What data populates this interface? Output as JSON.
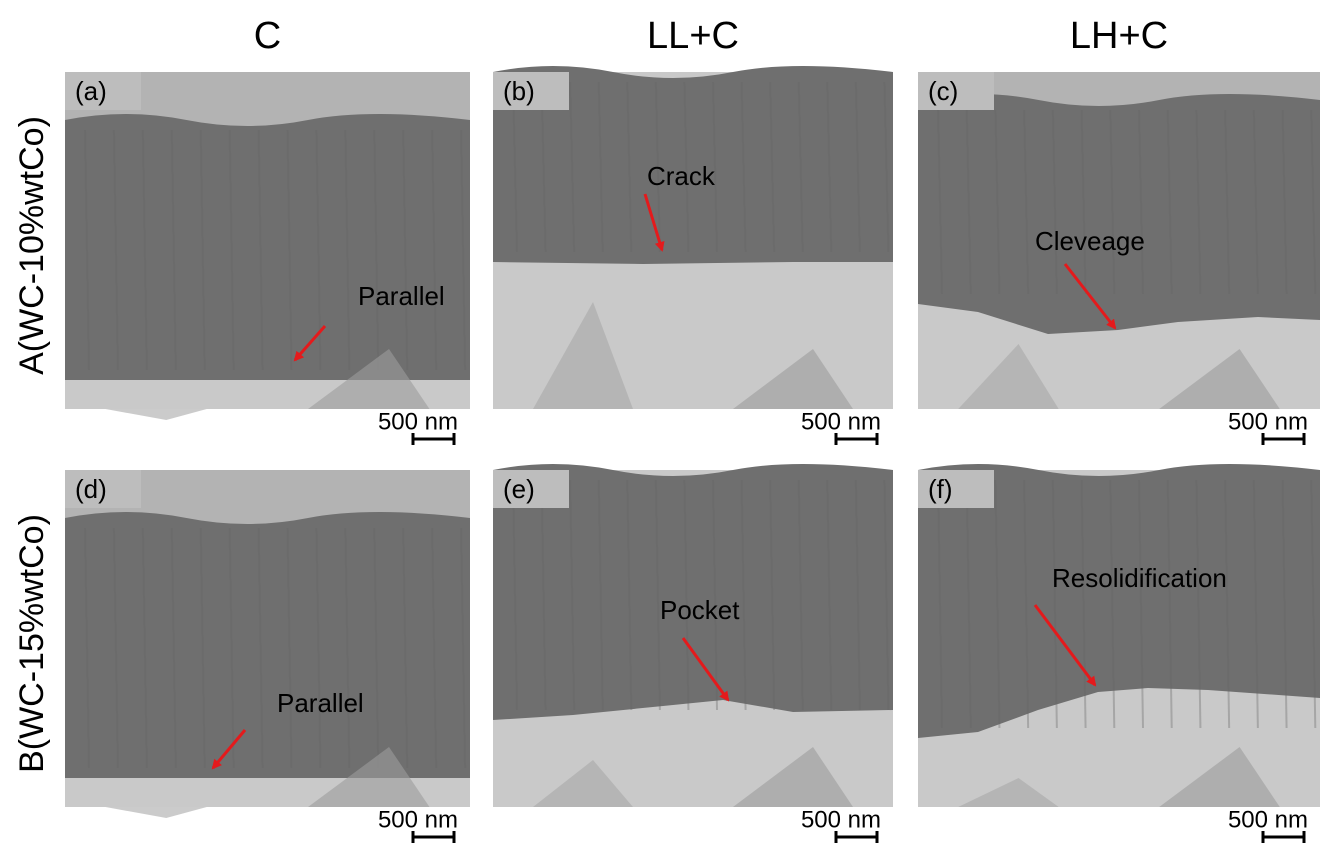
{
  "columns": [
    "C",
    "LL+C",
    "LH+C"
  ],
  "rows": [
    "A(WC-10%wtCo)",
    "B(WC-15%wtCo)"
  ],
  "panels": [
    {
      "label": "(a)",
      "annotation": "Parallel",
      "scale_bar": "500 nm"
    },
    {
      "label": "(b)",
      "annotation": "Crack",
      "scale_bar": "500 nm"
    },
    {
      "label": "(c)",
      "annotation": "Cleveage",
      "scale_bar": "500 nm"
    },
    {
      "label": "(d)",
      "annotation": "Parallel",
      "scale_bar": "500 nm"
    },
    {
      "label": "(e)",
      "annotation": "Pocket",
      "scale_bar": "500 nm"
    },
    {
      "label": "(f)",
      "annotation": "Resolidification",
      "scale_bar": "500 nm"
    }
  ]
}
